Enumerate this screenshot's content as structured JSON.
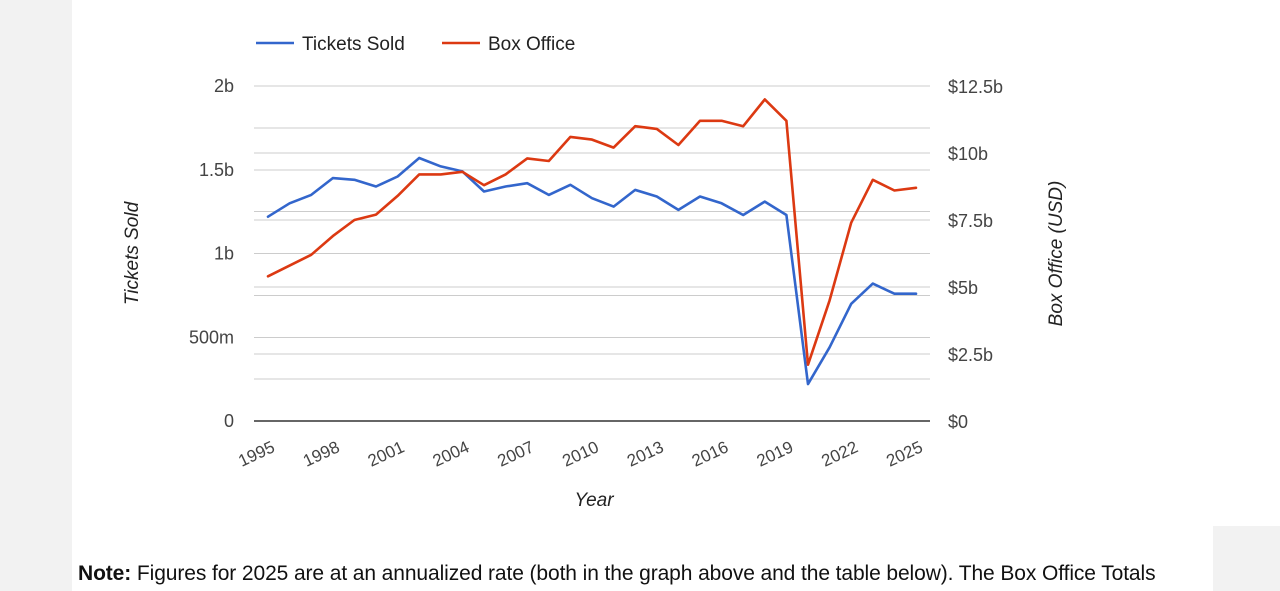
{
  "chart_data": {
    "type": "line",
    "xlabel": "Year",
    "ylabel_left": "Tickets Sold",
    "ylabel_right": "Box Office (USD)",
    "x": [
      1995,
      1996,
      1997,
      1998,
      1999,
      2000,
      2001,
      2002,
      2003,
      2004,
      2005,
      2006,
      2007,
      2008,
      2009,
      2010,
      2011,
      2012,
      2013,
      2014,
      2015,
      2016,
      2017,
      2018,
      2019,
      2020,
      2021,
      2022,
      2023,
      2024,
      2025
    ],
    "x_ticks": [
      "1995",
      "1998",
      "2001",
      "2004",
      "2007",
      "2010",
      "2013",
      "2016",
      "2019",
      "2022",
      "2025"
    ],
    "y_left_ticks": [
      {
        "value": 0,
        "label": "0"
      },
      {
        "value": 500000000,
        "label": "500m"
      },
      {
        "value": 1000000000,
        "label": "1b"
      },
      {
        "value": 1500000000,
        "label": "1.5b"
      },
      {
        "value": 2000000000,
        "label": "2b"
      }
    ],
    "y_right_ticks": [
      {
        "value": 0,
        "label": "$0"
      },
      {
        "value": 2500000000,
        "label": "$2.5b"
      },
      {
        "value": 5000000000,
        "label": "$5b"
      },
      {
        "value": 7500000000,
        "label": "$7.5b"
      },
      {
        "value": 10000000000,
        "label": "$10b"
      },
      {
        "value": 12500000000,
        "label": "$12.5b"
      }
    ],
    "ylim_left": [
      0,
      2000000000
    ],
    "ylim_right": [
      0,
      12500000000
    ],
    "grid": true,
    "legend_position": "top",
    "series": [
      {
        "name": "Tickets Sold",
        "axis": "left",
        "color": "#3366cc",
        "values": [
          1220000000,
          1300000000,
          1350000000,
          1450000000,
          1440000000,
          1400000000,
          1460000000,
          1570000000,
          1520000000,
          1490000000,
          1370000000,
          1400000000,
          1420000000,
          1350000000,
          1410000000,
          1330000000,
          1280000000,
          1380000000,
          1340000000,
          1260000000,
          1340000000,
          1300000000,
          1230000000,
          1310000000,
          1230000000,
          220000000,
          440000000,
          700000000,
          820000000,
          760000000,
          760000000
        ]
      },
      {
        "name": "Box Office",
        "axis": "right",
        "color": "#dc3912",
        "values": [
          5400000000,
          5800000000,
          6200000000,
          6900000000,
          7500000000,
          7700000000,
          8400000000,
          9200000000,
          9200000000,
          9300000000,
          8800000000,
          9200000000,
          9800000000,
          9700000000,
          10600000000,
          10500000000,
          10200000000,
          11000000000,
          10900000000,
          10300000000,
          11200000000,
          11200000000,
          11000000000,
          12000000000,
          11200000000,
          2100000000,
          4500000000,
          7400000000,
          9000000000,
          8600000000,
          8700000000
        ]
      }
    ]
  },
  "note": {
    "label": "Note:",
    "text": " Figures for 2025 are at an annualized rate (both in the graph above and the table below). The Box Office Totals"
  }
}
